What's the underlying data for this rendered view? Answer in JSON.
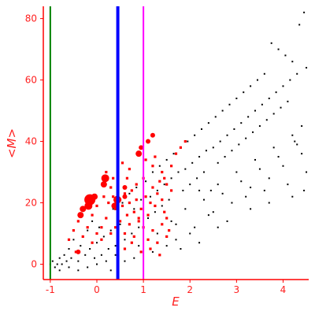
{
  "chart_data": {
    "type": "scatter",
    "title": "",
    "xlabel": "E",
    "ylabel": "<M>",
    "xlim": [
      -1.15,
      4.55
    ],
    "ylim": [
      -5,
      84
    ],
    "xticks": [
      -1,
      0,
      1,
      2,
      3,
      4
    ],
    "yticks": [
      0,
      20,
      40,
      60,
      80
    ],
    "grid": false,
    "legend": "none",
    "colors": {
      "axis": "#ff0000",
      "labels": "#ff2020",
      "points_black": "#000000",
      "points_red": "#ff0000"
    },
    "vertical_lines": [
      {
        "x": -1.0,
        "color": "#008000"
      },
      {
        "x": 0.45,
        "color": "#0000ff"
      },
      {
        "x": 1.0,
        "color": "#ff00ff"
      }
    ],
    "series": [
      {
        "color": "#000000",
        "marker": "dot",
        "points": [
          [
            -1.0,
            0
          ],
          [
            -0.95,
            1
          ],
          [
            -0.9,
            -1
          ],
          [
            -0.85,
            0
          ],
          [
            -0.8,
            2
          ],
          [
            -0.75,
            0
          ],
          [
            -0.7,
            3
          ],
          [
            -0.65,
            1
          ],
          [
            -0.6,
            5
          ],
          [
            -0.55,
            2
          ],
          [
            -0.5,
            8
          ],
          [
            -0.45,
            4
          ],
          [
            -0.4,
            1
          ],
          [
            -0.35,
            6
          ],
          [
            -0.3,
            9
          ],
          [
            -0.25,
            3
          ],
          [
            -0.2,
            11
          ],
          [
            -0.15,
            5
          ],
          [
            -0.1,
            14
          ],
          [
            -0.05,
            2
          ],
          [
            0.0,
            7
          ],
          [
            0.05,
            12
          ],
          [
            0.1,
            3
          ],
          [
            0.15,
            9
          ],
          [
            0.2,
            15
          ],
          [
            0.25,
            5
          ],
          [
            0.3,
            11
          ],
          [
            0.35,
            18
          ],
          [
            0.4,
            6
          ],
          [
            0.5,
            13
          ],
          [
            0.55,
            20
          ],
          [
            0.6,
            8
          ],
          [
            0.65,
            16
          ],
          [
            0.7,
            23
          ],
          [
            0.75,
            10
          ],
          [
            0.8,
            18
          ],
          [
            0.85,
            25
          ],
          [
            0.9,
            12
          ],
          [
            0.95,
            21
          ],
          [
            1.05,
            27
          ],
          [
            1.1,
            15
          ],
          [
            1.15,
            22
          ],
          [
            1.2,
            30
          ],
          [
            1.25,
            17
          ],
          [
            1.3,
            24
          ],
          [
            1.35,
            32
          ],
          [
            1.4,
            19
          ],
          [
            1.45,
            26
          ],
          [
            1.5,
            34
          ],
          [
            1.55,
            21
          ],
          [
            1.6,
            28
          ],
          [
            1.65,
            36
          ],
          [
            1.7,
            13
          ],
          [
            1.75,
            30
          ],
          [
            1.8,
            38
          ],
          [
            1.85,
            24
          ],
          [
            1.9,
            31
          ],
          [
            1.95,
            40
          ],
          [
            2.0,
            26
          ],
          [
            2.05,
            33
          ],
          [
            2.1,
            42
          ],
          [
            2.15,
            28
          ],
          [
            2.2,
            35
          ],
          [
            2.25,
            44
          ],
          [
            2.3,
            30
          ],
          [
            2.35,
            37
          ],
          [
            2.4,
            46
          ],
          [
            2.45,
            24
          ],
          [
            2.5,
            38
          ],
          [
            2.55,
            48
          ],
          [
            2.6,
            33
          ],
          [
            2.65,
            40
          ],
          [
            2.7,
            50
          ],
          [
            2.75,
            35
          ],
          [
            2.8,
            42
          ],
          [
            2.85,
            52
          ],
          [
            2.9,
            37
          ],
          [
            2.95,
            44
          ],
          [
            3.0,
            54
          ],
          [
            3.05,
            39
          ],
          [
            3.1,
            46
          ],
          [
            3.15,
            56
          ],
          [
            3.2,
            41
          ],
          [
            3.25,
            48
          ],
          [
            3.3,
            58
          ],
          [
            3.35,
            43
          ],
          [
            3.4,
            50
          ],
          [
            3.45,
            60
          ],
          [
            3.5,
            45
          ],
          [
            3.55,
            52
          ],
          [
            3.6,
            62
          ],
          [
            3.65,
            47
          ],
          [
            3.7,
            54
          ],
          [
            3.75,
            72
          ],
          [
            3.8,
            49
          ],
          [
            3.85,
            56
          ],
          [
            3.9,
            70
          ],
          [
            3.95,
            51
          ],
          [
            4.0,
            58
          ],
          [
            4.05,
            68
          ],
          [
            4.1,
            53
          ],
          [
            4.15,
            60
          ],
          [
            4.2,
            66
          ],
          [
            4.25,
            40
          ],
          [
            4.3,
            62
          ],
          [
            4.35,
            78
          ],
          [
            4.4,
            45
          ],
          [
            4.45,
            82
          ],
          [
            4.5,
            64
          ],
          [
            2.2,
            24
          ],
          [
            2.6,
            26
          ],
          [
            3.0,
            30
          ],
          [
            3.4,
            34
          ],
          [
            3.8,
            38
          ],
          [
            4.2,
            42
          ],
          [
            2.4,
            16
          ],
          [
            2.9,
            20
          ],
          [
            3.3,
            25
          ],
          [
            3.7,
            28
          ],
          [
            4.0,
            32
          ],
          [
            4.4,
            36
          ],
          [
            1.9,
            18
          ],
          [
            2.3,
            21
          ],
          [
            2.7,
            23
          ],
          [
            3.1,
            27
          ],
          [
            3.5,
            31
          ],
          [
            3.9,
            35
          ],
          [
            4.3,
            39
          ],
          [
            1.6,
            14
          ],
          [
            2.1,
            12
          ],
          [
            2.5,
            17
          ],
          [
            2.8,
            14
          ],
          [
            3.2,
            22
          ],
          [
            3.6,
            24
          ],
          [
            4.1,
            26
          ],
          [
            4.5,
            30
          ],
          [
            1.3,
            10
          ],
          [
            1.7,
            8
          ],
          [
            2.0,
            10
          ],
          [
            2.6,
            12
          ],
          [
            3.3,
            18
          ],
          [
            3.7,
            20
          ],
          [
            4.2,
            22
          ],
          [
            4.45,
            24
          ],
          [
            0.9,
            6
          ],
          [
            1.2,
            4
          ],
          [
            1.5,
            6
          ],
          [
            1.8,
            5
          ],
          [
            2.2,
            7
          ],
          [
            0.8,
            2
          ],
          [
            0.6,
            1
          ],
          [
            0.4,
            3
          ],
          [
            0.2,
            1
          ],
          [
            0.0,
            0
          ],
          [
            -0.2,
            -1
          ],
          [
            -0.4,
            -2
          ],
          [
            -0.6,
            -1
          ],
          [
            -0.8,
            -2
          ],
          [
            0.3,
            -2
          ]
        ]
      },
      {
        "color": "#ff0000",
        "marker": "square",
        "points": [
          [
            0.2,
            30
          ],
          [
            0.3,
            25
          ],
          [
            0.35,
            22
          ],
          [
            0.4,
            18
          ],
          [
            0.5,
            21
          ],
          [
            0.55,
            19
          ],
          [
            0.6,
            23
          ],
          [
            0.65,
            16
          ],
          [
            0.7,
            20
          ],
          [
            0.75,
            24
          ],
          [
            0.8,
            17
          ],
          [
            0.85,
            21
          ],
          [
            0.9,
            14
          ],
          [
            0.95,
            18
          ],
          [
            1.05,
            22
          ],
          [
            1.1,
            16
          ],
          [
            1.15,
            20
          ],
          [
            1.2,
            25
          ],
          [
            1.25,
            19
          ],
          [
            1.3,
            23
          ],
          [
            1.35,
            27
          ],
          [
            1.4,
            21
          ],
          [
            1.45,
            17
          ],
          [
            1.5,
            15
          ],
          [
            1.55,
            11
          ],
          [
            0.4,
            12
          ],
          [
            0.5,
            14
          ],
          [
            0.6,
            10
          ],
          [
            0.7,
            13
          ],
          [
            0.8,
            9
          ],
          [
            0.9,
            15
          ],
          [
            1.0,
            12
          ],
          [
            1.1,
            8
          ],
          [
            1.2,
            11
          ],
          [
            1.3,
            7
          ],
          [
            1.4,
            13
          ],
          [
            1.5,
            9
          ],
          [
            0.1,
            8
          ],
          [
            0.0,
            10
          ],
          [
            -0.1,
            7
          ],
          [
            -0.2,
            12
          ],
          [
            -0.3,
            9
          ],
          [
            -0.4,
            14
          ],
          [
            -0.5,
            11
          ],
          [
            -0.6,
            8
          ],
          [
            0.2,
            15
          ],
          [
            0.1,
            12
          ],
          [
            0.3,
            10
          ],
          [
            0.45,
            6
          ],
          [
            0.6,
            5
          ],
          [
            0.75,
            7
          ],
          [
            0.95,
            4
          ],
          [
            1.15,
            5
          ],
          [
            1.35,
            3
          ],
          [
            0.25,
            20
          ],
          [
            1.45,
            28
          ],
          [
            1.6,
            32
          ],
          [
            1.7,
            36
          ],
          [
            1.8,
            38
          ],
          [
            1.9,
            40
          ],
          [
            1.4,
            30
          ],
          [
            1.6,
            24
          ],
          [
            1.5,
            26
          ],
          [
            0.65,
            28
          ],
          [
            0.85,
            26
          ],
          [
            1.0,
            28
          ],
          [
            0.55,
            33
          ],
          [
            0.7,
            31
          ],
          [
            1.2,
            32
          ],
          [
            0.35,
            28
          ],
          [
            -0.1,
            16
          ],
          [
            -0.3,
            18
          ],
          [
            0.0,
            19
          ],
          [
            0.15,
            22
          ],
          [
            0.45,
            24
          ],
          [
            1.05,
            34
          ],
          [
            1.25,
            35
          ],
          [
            -0.45,
            4
          ]
        ]
      },
      {
        "color": "#ff0000",
        "marker": "large-circle",
        "points": [
          [
            0.15,
            26,
            4
          ],
          [
            0.18,
            28,
            5
          ],
          [
            -0.15,
            21,
            7
          ],
          [
            -0.18,
            19,
            5
          ],
          [
            -0.35,
            16,
            4
          ],
          [
            -0.3,
            18,
            4
          ],
          [
            -0.05,
            22,
            4
          ],
          [
            0.38,
            19,
            4
          ],
          [
            0.44,
            21,
            5
          ],
          [
            0.6,
            22,
            3
          ],
          [
            0.6,
            25,
            3
          ],
          [
            0.9,
            36,
            4
          ],
          [
            0.95,
            38,
            3
          ],
          [
            1.1,
            40,
            3
          ],
          [
            1.2,
            42,
            3
          ],
          [
            -0.4,
            4,
            3
          ]
        ]
      }
    ]
  }
}
